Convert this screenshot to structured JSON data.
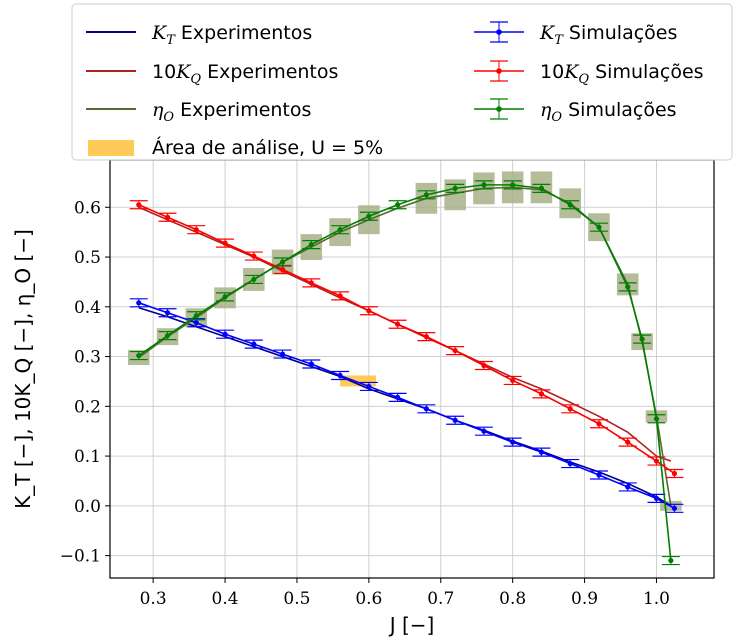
{
  "chart_data": {
    "type": "line",
    "xlabel": "J [−]",
    "ylabel": "K_T [−], 10K_Q [−], η_O [−]",
    "xlim": [
      0.24,
      1.08
    ],
    "ylim": [
      -0.145,
      0.695
    ],
    "xticks": [
      0.3,
      0.4,
      0.5,
      0.6,
      0.7,
      0.8,
      0.9,
      1.0
    ],
    "xtick_labels": [
      "0.3",
      "0.4",
      "0.5",
      "0.6",
      "0.7",
      "0.8",
      "0.9",
      "1.0"
    ],
    "yticks": [
      -0.1,
      0.0,
      0.1,
      0.2,
      0.3,
      0.4,
      0.5,
      0.6
    ],
    "ytick_labels": [
      "−0.1",
      "0.0",
      "0.1",
      "0.2",
      "0.3",
      "0.4",
      "0.5",
      "0.6"
    ],
    "grid": true,
    "legend_position": "top, above plot",
    "analysis_area": {
      "name": "Área de análise, U = 5%",
      "color": "#ffc445",
      "x": [
        0.56,
        0.61
      ],
      "y": [
        0.24,
        0.262
      ]
    },
    "experiments": [
      {
        "name": "K_T Experimentos",
        "legend_base": "K",
        "legend_sub": "T",
        "legend_prefix": "",
        "legend_suffix": " Experimentos",
        "color": "#00008b",
        "x": [
          0.28,
          0.32,
          0.36,
          0.4,
          0.44,
          0.48,
          0.52,
          0.56,
          0.6,
          0.64,
          0.68,
          0.72,
          0.76,
          0.8,
          0.84,
          0.88,
          0.92,
          0.96,
          1.0,
          1.02
        ],
        "y": [
          0.398,
          0.38,
          0.36,
          0.34,
          0.32,
          0.3,
          0.28,
          0.26,
          0.235,
          0.215,
          0.195,
          0.172,
          0.152,
          0.13,
          0.11,
          0.088,
          0.068,
          0.045,
          0.018,
          0.0
        ]
      },
      {
        "name": "10K_Q Experimentos",
        "legend_base": "K",
        "legend_sub": "Q",
        "legend_prefix": "10",
        "legend_suffix": " Experimentos",
        "color": "#b22222",
        "x": [
          0.28,
          0.32,
          0.36,
          0.4,
          0.44,
          0.48,
          0.52,
          0.56,
          0.6,
          0.64,
          0.68,
          0.72,
          0.76,
          0.8,
          0.84,
          0.88,
          0.92,
          0.96,
          1.0,
          1.02
        ],
        "y": [
          0.6,
          0.575,
          0.55,
          0.525,
          0.5,
          0.472,
          0.445,
          0.418,
          0.392,
          0.365,
          0.338,
          0.312,
          0.285,
          0.258,
          0.235,
          0.208,
          0.18,
          0.148,
          0.1,
          0.09
        ]
      },
      {
        "name": "η_O Experimentos",
        "legend_base": "η",
        "legend_sub": "O",
        "legend_prefix": "",
        "legend_suffix": " Experimentos",
        "color": "#556b2f",
        "x": [
          0.28,
          0.32,
          0.36,
          0.4,
          0.44,
          0.48,
          0.52,
          0.56,
          0.6,
          0.64,
          0.68,
          0.72,
          0.76,
          0.8,
          0.84,
          0.88,
          0.92,
          0.96,
          0.98,
          1.0,
          1.02
        ],
        "y": [
          0.298,
          0.34,
          0.378,
          0.418,
          0.455,
          0.49,
          0.52,
          0.55,
          0.575,
          0.598,
          0.618,
          0.628,
          0.638,
          0.64,
          0.635,
          0.608,
          0.56,
          0.445,
          0.33,
          0.18,
          0.0
        ]
      }
    ],
    "simulations": [
      {
        "name": "K_T Simulações",
        "legend_base": "K",
        "legend_sub": "T",
        "legend_prefix": "",
        "legend_suffix": " Simulações",
        "color": "#0000ff",
        "x": [
          0.28,
          0.32,
          0.36,
          0.4,
          0.44,
          0.48,
          0.52,
          0.56,
          0.6,
          0.64,
          0.68,
          0.72,
          0.76,
          0.8,
          0.84,
          0.88,
          0.92,
          0.96,
          1.0,
          1.025
        ],
        "y": [
          0.408,
          0.388,
          0.368,
          0.345,
          0.325,
          0.305,
          0.285,
          0.262,
          0.24,
          0.218,
          0.195,
          0.172,
          0.15,
          0.128,
          0.108,
          0.085,
          0.062,
          0.038,
          0.015,
          -0.005
        ]
      },
      {
        "name": "10K_Q Simulações",
        "legend_base": "K",
        "legend_sub": "Q",
        "legend_prefix": "10",
        "legend_suffix": " Simulações",
        "color": "#ff0000",
        "x": [
          0.28,
          0.32,
          0.36,
          0.4,
          0.44,
          0.48,
          0.52,
          0.56,
          0.6,
          0.64,
          0.68,
          0.72,
          0.76,
          0.8,
          0.84,
          0.88,
          0.92,
          0.96,
          1.0,
          1.025
        ],
        "y": [
          0.605,
          0.58,
          0.555,
          0.528,
          0.502,
          0.475,
          0.448,
          0.422,
          0.392,
          0.365,
          0.34,
          0.312,
          0.282,
          0.252,
          0.225,
          0.195,
          0.165,
          0.128,
          0.09,
          0.065
        ]
      },
      {
        "name": "η_O Simulações",
        "legend_base": "η",
        "legend_sub": "O",
        "legend_prefix": "",
        "legend_suffix": " Simulações",
        "color": "#008000",
        "x": [
          0.28,
          0.32,
          0.36,
          0.4,
          0.44,
          0.48,
          0.52,
          0.56,
          0.6,
          0.64,
          0.68,
          0.72,
          0.76,
          0.8,
          0.84,
          0.88,
          0.92,
          0.96,
          0.98,
          1.0,
          1.02
        ],
        "y": [
          0.302,
          0.342,
          0.382,
          0.42,
          0.455,
          0.49,
          0.525,
          0.555,
          0.582,
          0.605,
          0.625,
          0.638,
          0.645,
          0.645,
          0.638,
          0.605,
          0.56,
          0.44,
          0.335,
          0.175,
          -0.11
        ]
      }
    ],
    "uncertainty_boxes": {
      "color": "#a8b088",
      "dx": 0.015,
      "x": [
        0.28,
        0.32,
        0.36,
        0.4,
        0.44,
        0.48,
        0.52,
        0.56,
        0.6,
        0.68,
        0.72,
        0.76,
        0.8,
        0.84,
        0.88,
        0.92,
        0.96,
        0.98,
        1.0,
        1.02
      ],
      "y": [
        0.298,
        0.34,
        0.378,
        0.418,
        0.455,
        0.49,
        0.52,
        0.55,
        0.575,
        0.618,
        0.625,
        0.638,
        0.64,
        0.64,
        0.608,
        0.56,
        0.445,
        0.33,
        0.18,
        0.0
      ],
      "dy": [
        0.015,
        0.017,
        0.019,
        0.021,
        0.023,
        0.025,
        0.026,
        0.028,
        0.029,
        0.031,
        0.031,
        0.032,
        0.032,
        0.032,
        0.03,
        0.028,
        0.022,
        0.017,
        0.012,
        0.01
      ]
    }
  }
}
